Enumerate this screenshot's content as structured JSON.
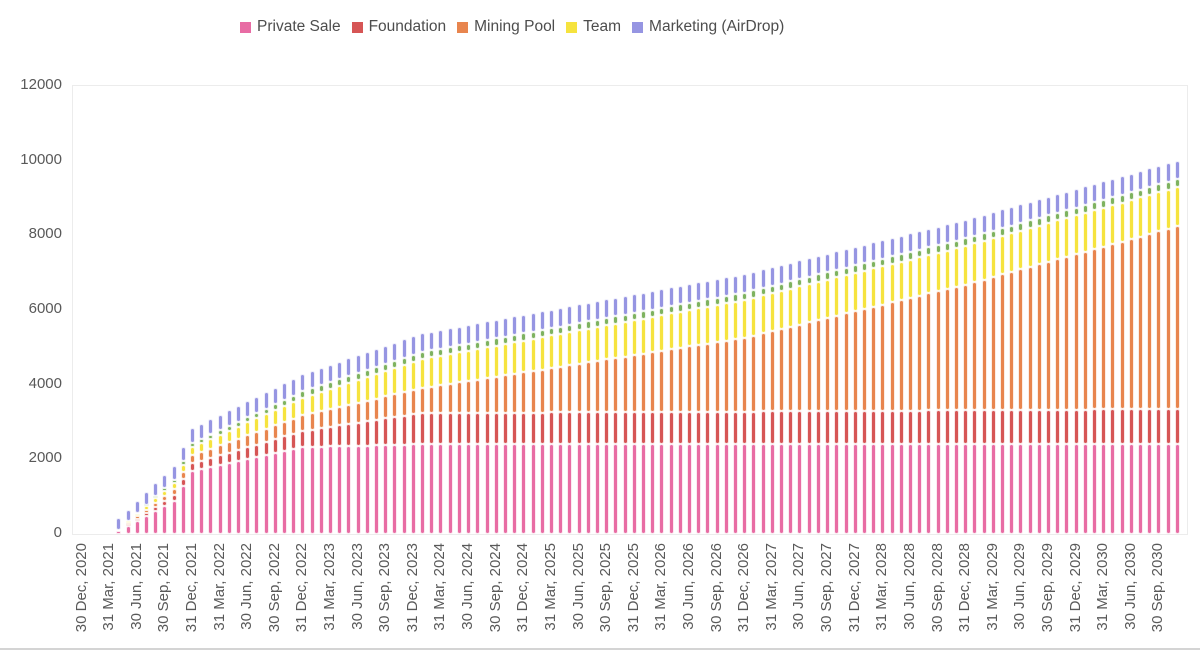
{
  "legend": {
    "items": [
      {
        "label": "Private Sale",
        "color": "#e86ca4"
      },
      {
        "label": "Foundation",
        "color": "#d65555"
      },
      {
        "label": "Mining Pool",
        "color": "#e8854e"
      },
      {
        "label": "Team",
        "color": "#f6e33e"
      },
      {
        "label": "Marketing (AirDrop)",
        "color": "#9695e2"
      }
    ]
  },
  "chart_data": {
    "type": "bar",
    "stacked": true,
    "title": "",
    "xlabel": "",
    "ylabel": "",
    "ylim": [
      0,
      12000
    ],
    "y_ticks": [
      0,
      2000,
      4000,
      6000,
      8000,
      10000,
      12000
    ],
    "y_tick_labels": [
      "0",
      "2000",
      "4000",
      "6000",
      "8000",
      "10000",
      "12000"
    ],
    "grid": false,
    "legend_position": "top-center",
    "x_unit": "month",
    "x_range": {
      "start": "2020-12",
      "end": "2030-11",
      "bar_count": 120
    },
    "x_tick_every_n_bars": 3,
    "x_tick_labels": [
      "30 Dec, 2020",
      "31 Mar, 2021",
      "30 Jun, 2021",
      "30 Sep, 2021",
      "31 Dec, 2021",
      "31 Mar, 2022",
      "30 Jun, 2022",
      "30 Sep, 2022",
      "31 Dec, 2022",
      "31 Mar, 2023",
      "30 Jun, 2023",
      "30 Sep, 2023",
      "31 Dec, 2023",
      "31 Mar, 2024",
      "30 Jun, 2024",
      "30 Sep, 2024",
      "31 Dec, 2024",
      "31 Mar, 2025",
      "30 Jun, 2025",
      "30 Sep, 2025",
      "31 Dec, 2025",
      "31 Mar, 2026",
      "30 Jun, 2026",
      "30 Sep, 2026",
      "31 Dec, 2026",
      "31 Mar, 2027",
      "30 Jun, 2027",
      "30 Sep, 2027",
      "31 Dec, 2027",
      "31 Mar, 2028",
      "30 Jun, 2028",
      "30 Sep, 2028",
      "31 Dec, 2028",
      "31 Mar, 2029",
      "30 Jun, 2029",
      "30 Sep, 2029",
      "31 Dec, 2029",
      "31 Mar, 2030",
      "30 Jun, 2030",
      "30 Sep, 2030"
    ],
    "interpolation": "linear between monthly anchor points [month_index_from_2020-12, cumulative_value]",
    "series": [
      {
        "name": "Private Sale",
        "color": "#e86ca4",
        "in_legend": true,
        "anchors": [
          [
            3,
            0
          ],
          [
            4,
            80
          ],
          [
            10,
            890
          ],
          [
            12,
            1700
          ],
          [
            24,
            2330
          ],
          [
            36,
            2400
          ],
          [
            119,
            2400
          ]
        ]
      },
      {
        "name": "Foundation",
        "color": "#d65555",
        "in_legend": true,
        "anchors": [
          [
            3,
            0
          ],
          [
            4,
            15
          ],
          [
            12,
            190
          ],
          [
            24,
            430
          ],
          [
            37,
            840
          ],
          [
            72,
            880
          ],
          [
            119,
            950
          ]
        ]
      },
      {
        "name": "Mining Pool",
        "color": "#e8854e",
        "in_legend": true,
        "anchors": [
          [
            3,
            0
          ],
          [
            4,
            10
          ],
          [
            12,
            220
          ],
          [
            24,
            420
          ],
          [
            37,
            665
          ],
          [
            72,
            1975
          ],
          [
            96,
            3365
          ],
          [
            119,
            4890
          ]
        ]
      },
      {
        "name": "Team",
        "color": "#f6e33e",
        "in_legend": true,
        "anchors": [
          [
            3,
            0
          ],
          [
            4,
            10
          ],
          [
            12,
            225
          ],
          [
            24,
            460
          ],
          [
            37,
            780
          ],
          [
            72,
            1015
          ],
          [
            119,
            1050
          ]
        ]
      },
      {
        "name": "",
        "color": "#7eb25f",
        "in_legend": false,
        "anchors": [
          [
            3,
            0
          ],
          [
            4,
            5
          ],
          [
            12,
            100
          ],
          [
            24,
            180
          ],
          [
            37,
            190
          ],
          [
            119,
            210
          ]
        ]
      },
      {
        "name": "Marketing (AirDrop)",
        "color": "#9695e2",
        "in_legend": true,
        "anchors": [
          [
            3,
            0
          ],
          [
            4,
            300
          ],
          [
            12,
            400
          ],
          [
            24,
            460
          ],
          [
            37,
            500
          ],
          [
            119,
            500
          ]
        ]
      }
    ]
  },
  "colors": {
    "background": "#ffffff",
    "plot_border": "#ececec",
    "axis_text": "#595959",
    "legend_text": "#4d4d4d",
    "bottom_divider": "#d4d4d4"
  }
}
